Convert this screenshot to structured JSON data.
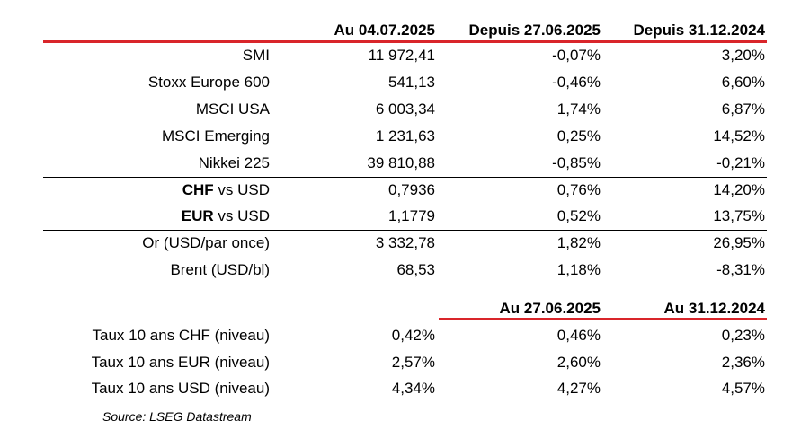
{
  "header": {
    "col1": "Au 04.07.2025",
    "col2": "Depuis 27.06.2025",
    "col3": "Depuis 31.12.2024"
  },
  "rows": [
    {
      "label": "SMI",
      "v1": "11 972,41",
      "v2": "-0,07%",
      "v3": "3,20%"
    },
    {
      "label": "Stoxx Europe 600",
      "v1": "541,13",
      "v2": "-0,46%",
      "v3": "6,60%"
    },
    {
      "label": "MSCI USA",
      "v1": "6 003,34",
      "v2": "1,74%",
      "v3": "6,87%"
    },
    {
      "label": "MSCI Emerging",
      "v1": "1 231,63",
      "v2": "0,25%",
      "v3": "14,52%"
    },
    {
      "label": "Nikkei 225",
      "v1": "39 810,88",
      "v2": "-0,85%",
      "v3": "-0,21%"
    },
    {
      "label_bold": "CHF",
      "label_rest": " vs USD",
      "v1": "0,7936",
      "v2": "0,76%",
      "v3": "14,20%"
    },
    {
      "label_bold": "EUR",
      "label_rest": " vs USD",
      "v1": "1,1779",
      "v2": "0,52%",
      "v3": "13,75%"
    },
    {
      "label": "Or (USD/par once)",
      "v1": "3 332,78",
      "v2": "1,82%",
      "v3": "26,95%"
    },
    {
      "label": "Brent (USD/bl)",
      "v1": "68,53",
      "v2": "1,18%",
      "v3": "-8,31%"
    }
  ],
  "header2": {
    "col2": "Au 27.06.2025",
    "col3": "Au 31.12.2024"
  },
  "rates": [
    {
      "label": "Taux 10 ans CHF (niveau)",
      "v1": "0,42%",
      "v2": "0,46%",
      "v3": "0,23%"
    },
    {
      "label": "Taux 10 ans EUR (niveau)",
      "v1": "2,57%",
      "v2": "2,60%",
      "v3": "2,36%"
    },
    {
      "label": "Taux 10 ans USD (niveau)",
      "v1": "4,34%",
      "v2": "4,27%",
      "v3": "4,57%"
    }
  ],
  "source": "Source: LSEG Datastream",
  "colors": {
    "accent_red": "#d9252a",
    "text": "#000000"
  }
}
